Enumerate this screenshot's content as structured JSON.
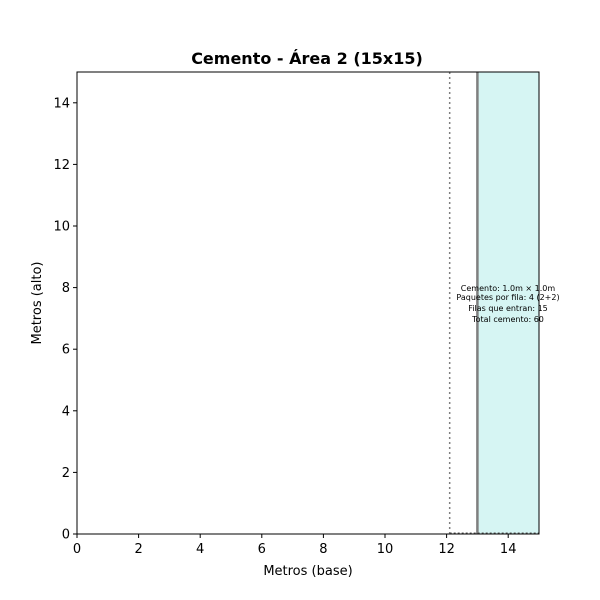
{
  "chart_data": {
    "type": "area",
    "title": "Cemento - Área 2 (15x15)",
    "xlabel": "Metros (base)",
    "ylabel": "Metros (alto)",
    "xlim": [
      0,
      15
    ],
    "ylim": [
      0,
      15
    ],
    "xticks": [
      "0",
      "2",
      "4",
      "6",
      "8",
      "10",
      "12",
      "14"
    ],
    "yticks": [
      "0",
      "2",
      "4",
      "6",
      "8",
      "10",
      "12",
      "14"
    ],
    "grid": false,
    "cement_block": {
      "x_start": 13,
      "x_end": 15,
      "y_start": 0,
      "y_end": 15,
      "fill": "#d6f5f3",
      "edge": "#7f7f7f"
    },
    "divider_line": {
      "x": 12.1,
      "style": "dotted",
      "color": "#7f7f7f"
    },
    "annotation": {
      "lines": [
        "Cemento: 1.0m × 1.0m",
        "Paquetes por fila: 4 (2+2)",
        "Filas que entran: 15",
        "Total cemento: 60"
      ]
    }
  }
}
